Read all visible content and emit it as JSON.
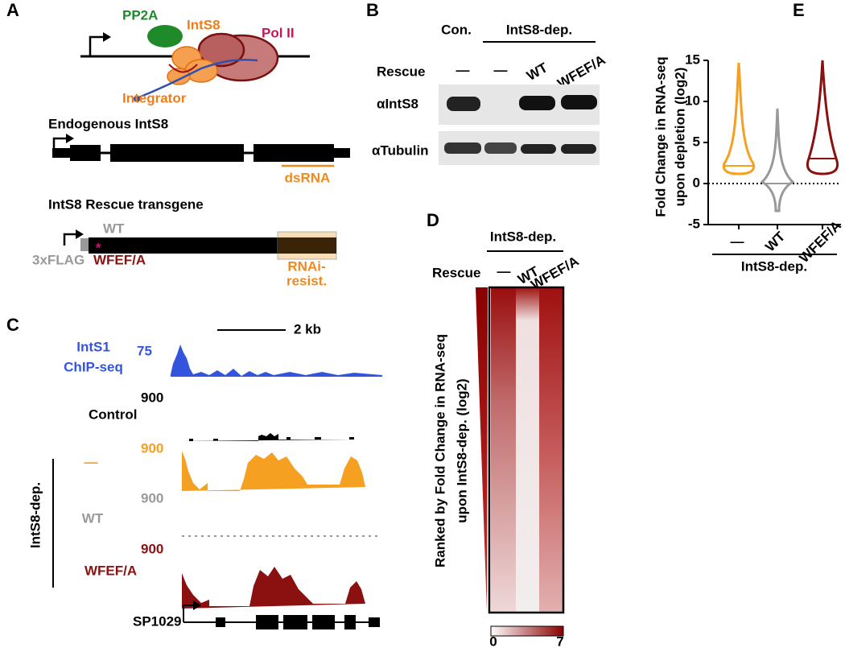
{
  "panels": {
    "A": {
      "label": "A",
      "pp2a": "PP2A",
      "ints8": "IntS8",
      "pol2": "Pol II",
      "integrator": "Integrator",
      "endogenous": "Endogenous IntS8",
      "dsrna": "dsRNA",
      "rescue_title": "IntS8 Rescue transgene",
      "wt": "WT",
      "flag": "3xFLAG",
      "mutant": "WFEF/A",
      "rnai": [
        "RNAi-",
        "resist."
      ]
    },
    "B": {
      "label": "B",
      "control": "Con.",
      "depletion": "IntS8-dep.",
      "rescue": "Rescue",
      "lanes": [
        "—",
        "—",
        "WT",
        "WFEF/A"
      ],
      "blots": [
        "αIntS8",
        "αTubulin"
      ]
    },
    "C": {
      "label": "C",
      "scale_bar": "2 kb",
      "chip_label": [
        "IntS1",
        "ChIP-seq"
      ],
      "chip_scale": 75,
      "tracks": [
        {
          "name": "Control",
          "scale": 900
        },
        {
          "name": "—",
          "scale": 900
        },
        {
          "name": "WT",
          "scale": 900
        },
        {
          "name": "WFEF/A",
          "scale": 900
        }
      ],
      "group": "IntS8-dep.",
      "gene": "SP1029"
    },
    "D": {
      "label": "D",
      "group": "IntS8-dep.",
      "rescue": "Rescue",
      "columns": [
        "—",
        "WT",
        "WFEF/A"
      ],
      "y_label": [
        "Ranked by Fold Change in RNA-seq",
        "upon IntS8-dep. (log2)"
      ],
      "colorbar": [
        0,
        7
      ]
    },
    "E": {
      "label": "E",
      "y_label": [
        "Fold Change in RNA-seq",
        "upon depletion (log2)"
      ],
      "ylim": [
        -5,
        15
      ],
      "yticks": [
        -5,
        0,
        5,
        10,
        15
      ],
      "categories": [
        "—",
        "WT",
        "WFEF/A"
      ],
      "group": "IntS8-dep."
    }
  }
}
